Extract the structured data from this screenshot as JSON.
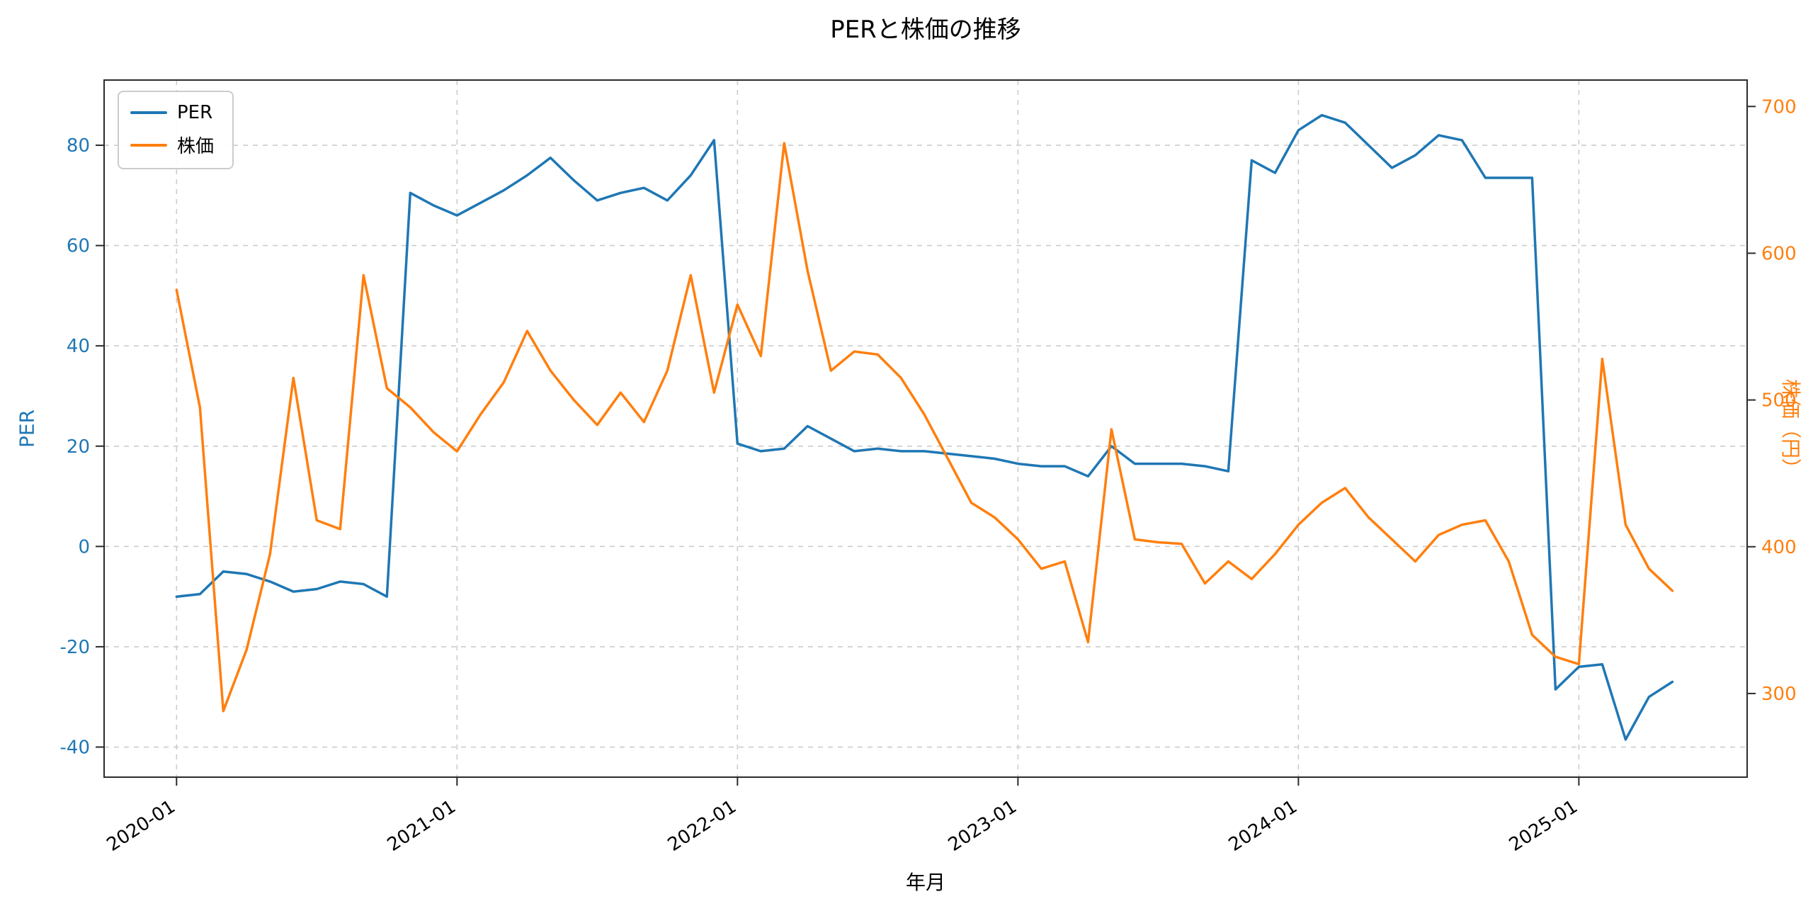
{
  "title": "PERと株価の推移",
  "chart_data": {
    "type": "line",
    "title": "PERと株価の推移",
    "xlabel": "年月",
    "grid": true,
    "legend_position": "upper-left",
    "xlim": [
      -3.1,
      67.2
    ],
    "x_ticks": {
      "positions": [
        0,
        12,
        24,
        36,
        48,
        60
      ],
      "labels": [
        "2020-01",
        "2021-01",
        "2022-01",
        "2023-01",
        "2024-01",
        "2025-01"
      ]
    },
    "left_axis": {
      "label": "PER",
      "color": "#1f77b4",
      "ticks": [
        -40,
        -20,
        0,
        20,
        40,
        60,
        80
      ],
      "lim": [
        -46,
        93
      ]
    },
    "right_axis": {
      "label": "株価（円）",
      "color": "#ff7f0e",
      "ticks": [
        300,
        400,
        500,
        600,
        700
      ],
      "lim": [
        243,
        718
      ]
    },
    "x_months": [
      "2020-01",
      "2020-02",
      "2020-03",
      "2020-04",
      "2020-05",
      "2020-06",
      "2020-07",
      "2020-08",
      "2020-09",
      "2020-10",
      "2020-11",
      "2020-12",
      "2021-01",
      "2021-02",
      "2021-03",
      "2021-04",
      "2021-05",
      "2021-06",
      "2021-07",
      "2021-08",
      "2021-09",
      "2021-10",
      "2021-11",
      "2021-12",
      "2022-01",
      "2022-02",
      "2022-03",
      "2022-04",
      "2022-05",
      "2022-06",
      "2022-07",
      "2022-08",
      "2022-09",
      "2022-10",
      "2022-11",
      "2022-12",
      "2023-01",
      "2023-02",
      "2023-03",
      "2023-04",
      "2023-05",
      "2023-06",
      "2023-07",
      "2023-08",
      "2023-09",
      "2023-10",
      "2023-11",
      "2023-12",
      "2024-01",
      "2024-02",
      "2024-03",
      "2024-04",
      "2024-05",
      "2024-06",
      "2024-07",
      "2024-08",
      "2024-09",
      "2024-10",
      "2024-11",
      "2024-12",
      "2025-01",
      "2025-02",
      "2025-03",
      "2025-04",
      "2025-05"
    ],
    "series": [
      {
        "name": "PER",
        "axis": "left",
        "color": "#1f77b4",
        "values": [
          -10,
          -9.5,
          -5,
          -5.5,
          -7,
          -9,
          -8.5,
          -7,
          -7.5,
          -10,
          70.5,
          68,
          66,
          68.5,
          71,
          74,
          77.5,
          73,
          69,
          70.5,
          71.5,
          69,
          74,
          81,
          20.5,
          19,
          19.5,
          24,
          21.5,
          19,
          19.5,
          19,
          19,
          18.5,
          18,
          17.5,
          16.5,
          16,
          16,
          14,
          20,
          16.5,
          16.5,
          16.5,
          16,
          15,
          77,
          74.5,
          83,
          86,
          84.5,
          80,
          75.5,
          78,
          82,
          81,
          73.5,
          73.5,
          73.5,
          -28.5,
          -24,
          -23.5,
          -38.5,
          -30,
          -27
        ]
      },
      {
        "name": "株価",
        "axis": "right",
        "color": "#ff7f0e",
        "values": [
          575,
          495,
          288,
          330,
          395,
          515,
          418,
          412,
          585,
          508,
          495,
          478,
          465,
          490,
          512,
          547,
          520,
          500,
          483,
          505,
          485,
          520,
          585,
          505,
          565,
          530,
          675,
          588,
          520,
          533,
          531,
          515,
          490,
          460,
          430,
          420,
          405,
          385,
          390,
          335,
          480,
          405,
          403,
          402,
          375,
          390,
          378,
          395,
          415,
          430,
          440,
          420,
          405,
          390,
          408,
          415,
          418,
          390,
          340,
          325,
          320,
          528,
          415,
          385,
          370
        ]
      }
    ],
    "style": {
      "grid_color": "#cccccc",
      "frame_color": "#2b2b2b",
      "tick_color": "#2b2b2b",
      "line_width": 3.5
    }
  },
  "legend": {
    "per_label": "PER",
    "price_label": "株価"
  }
}
